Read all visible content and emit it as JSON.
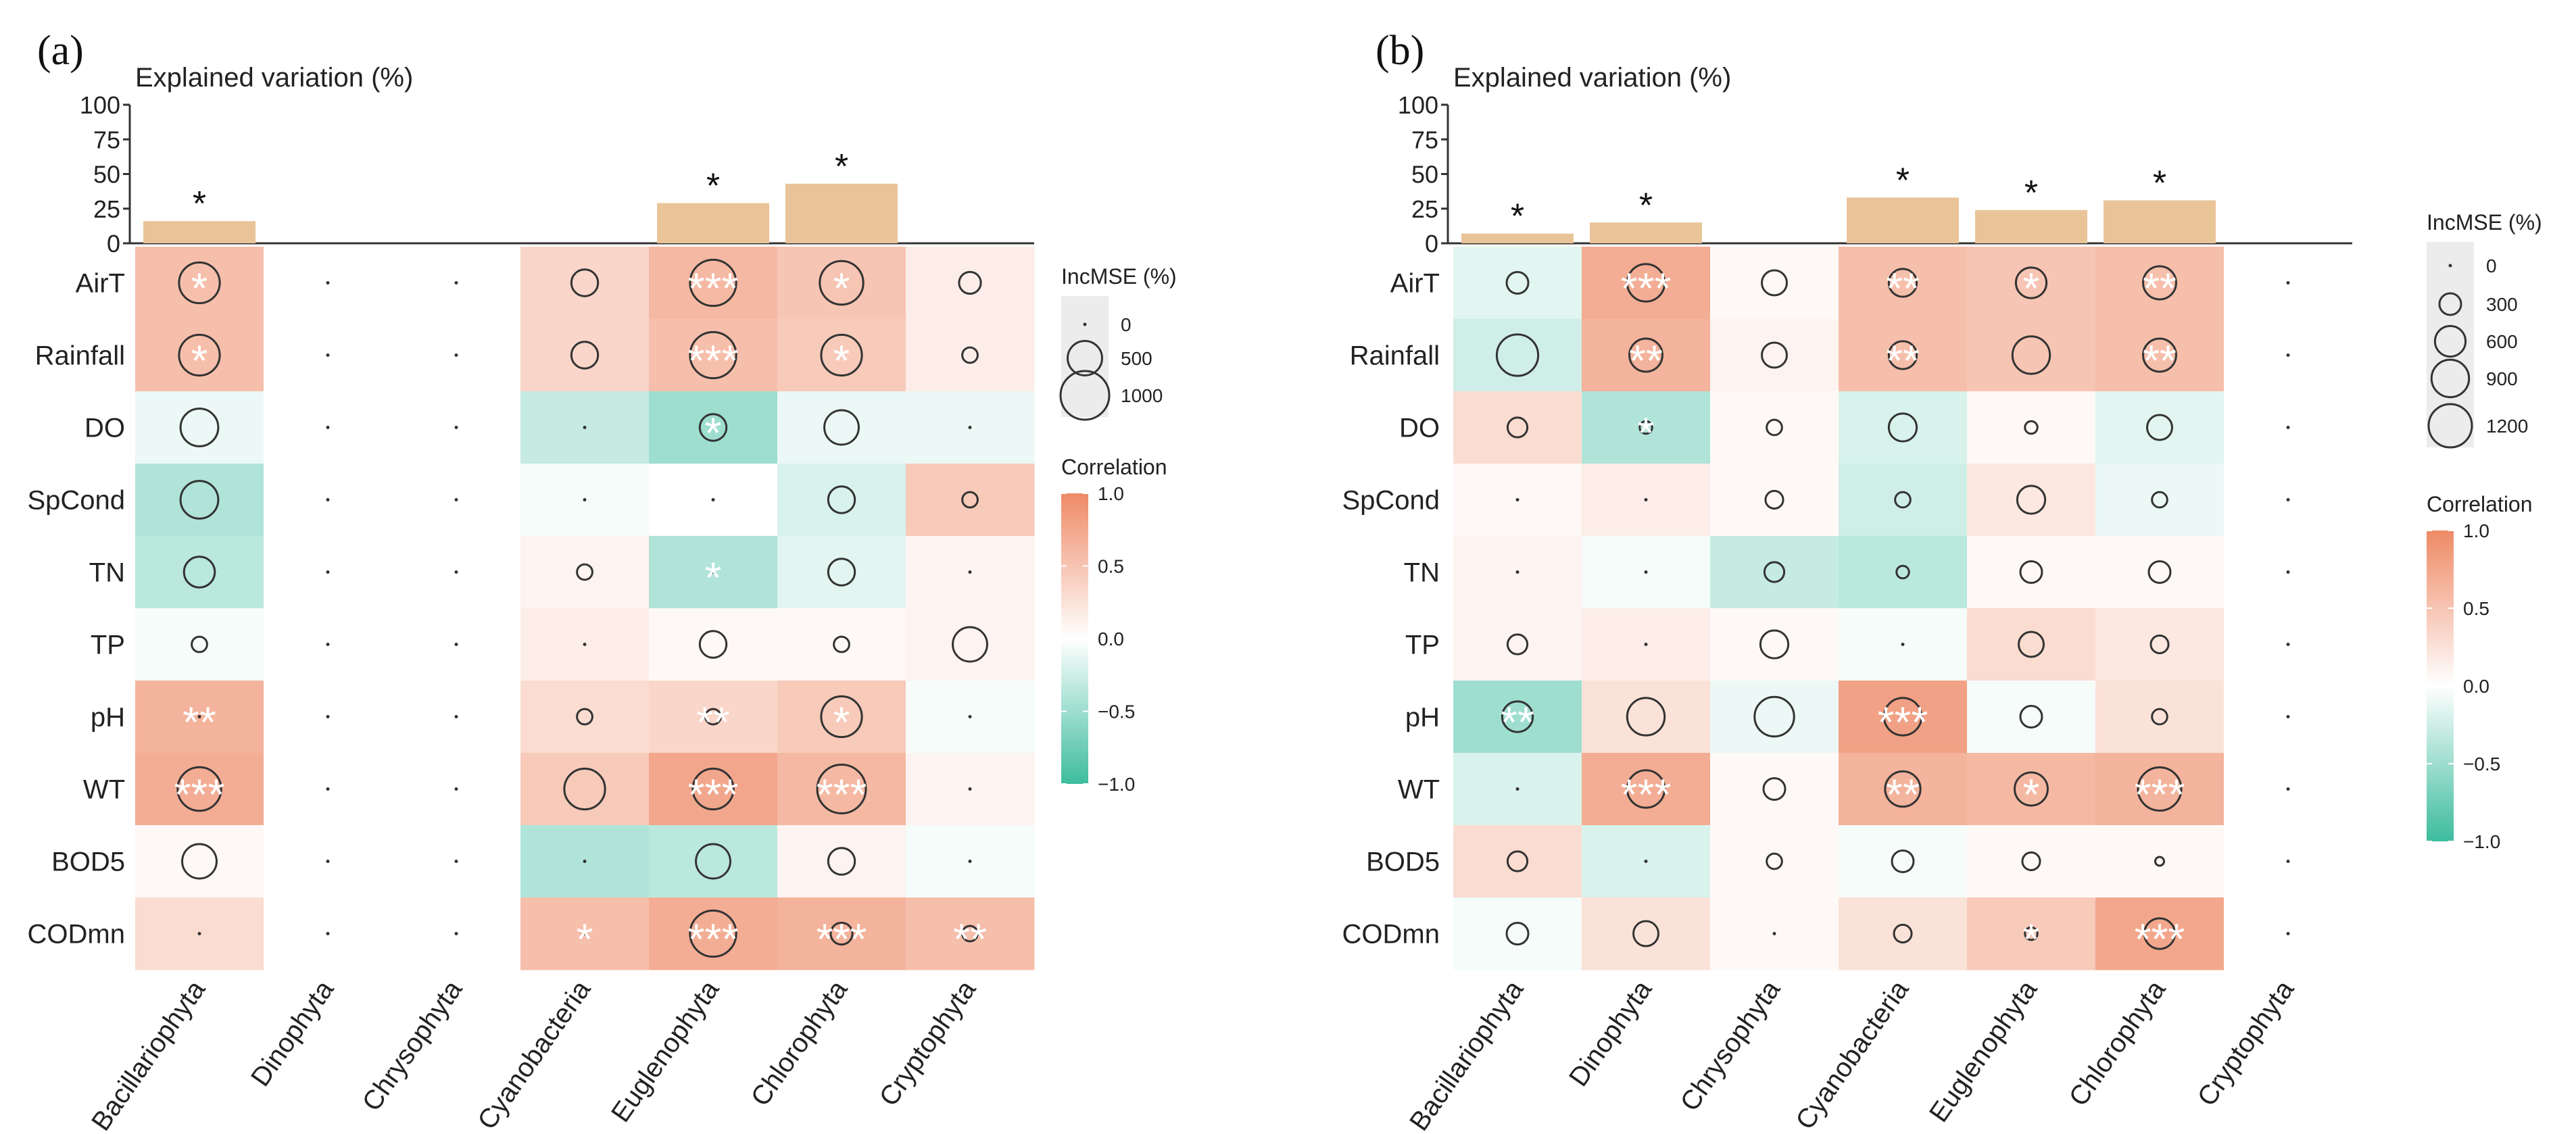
{
  "colors": {
    "bar": "#e9c499",
    "positive": "#ee8a66",
    "neutral": "#ffffff",
    "negative": "#3dbc9e",
    "text": "#222222"
  },
  "chart_data": [
    {
      "type": "heatmap",
      "panel_label": "(a)",
      "title": "Explained variation (%)",
      "bar_ylim": [
        0,
        100
      ],
      "bar_ticks": [
        "100",
        "75",
        "50",
        "25",
        "0"
      ],
      "rows": [
        "AirT",
        "Rainfall",
        "DO",
        "SpCond",
        "TN",
        "TP",
        "pH",
        "WT",
        "BOD5",
        "CODmn"
      ],
      "columns": [
        "Bacillariophyta",
        "Dinophyta",
        "Chrysophyta",
        "Cyanobacteria",
        "Euglenophyta",
        "Chlorophyta",
        "Cryptophyta"
      ],
      "explained_variation": [
        16,
        null,
        null,
        null,
        29,
        43,
        null
      ],
      "bar_significance": [
        "*",
        "",
        "",
        "",
        "*",
        "*",
        ""
      ],
      "correlation": [
        [
          0.55,
          null,
          null,
          0.35,
          0.6,
          0.5,
          0.15
        ],
        [
          0.55,
          null,
          null,
          0.35,
          0.55,
          0.45,
          0.15
        ],
        [
          -0.1,
          null,
          null,
          -0.3,
          -0.5,
          -0.1,
          -0.1
        ],
        [
          -0.4,
          null,
          null,
          -0.05,
          0.0,
          -0.2,
          0.45
        ],
        [
          -0.35,
          null,
          null,
          0.1,
          -0.4,
          -0.15,
          0.1
        ],
        [
          -0.05,
          null,
          null,
          0.15,
          0.05,
          0.05,
          0.1
        ],
        [
          0.65,
          null,
          null,
          0.3,
          0.35,
          0.45,
          -0.05
        ],
        [
          0.7,
          null,
          null,
          0.45,
          0.75,
          0.6,
          0.1
        ],
        [
          0.05,
          null,
          null,
          -0.4,
          -0.35,
          0.1,
          -0.05
        ],
        [
          0.3,
          null,
          null,
          0.55,
          0.7,
          0.65,
          0.55
        ]
      ],
      "incmse": [
        [
          700,
          0,
          0,
          300,
          900,
          800,
          200
        ],
        [
          700,
          0,
          0,
          300,
          900,
          700,
          100
        ],
        [
          600,
          0,
          0,
          0,
          300,
          500,
          0
        ],
        [
          600,
          0,
          0,
          0,
          0,
          300,
          100
        ],
        [
          400,
          0,
          0,
          100,
          0,
          300,
          0
        ],
        [
          100,
          0,
          0,
          0,
          300,
          100,
          500
        ],
        [
          0,
          0,
          0,
          100,
          100,
          700,
          0
        ],
        [
          800,
          0,
          0,
          700,
          700,
          1000,
          0
        ],
        [
          500,
          0,
          0,
          0,
          500,
          300,
          0
        ],
        [
          0,
          0,
          0,
          0,
          900,
          200,
          100
        ]
      ],
      "significance": [
        [
          "*",
          "",
          "",
          "",
          "***",
          "*",
          ""
        ],
        [
          "*",
          "",
          "",
          "",
          "***",
          "*",
          ""
        ],
        [
          "",
          "",
          "",
          "",
          "*",
          "",
          ""
        ],
        [
          "",
          "",
          "",
          "",
          "",
          "",
          ""
        ],
        [
          "",
          "",
          "",
          "",
          "*",
          "",
          ""
        ],
        [
          "",
          "",
          "",
          "",
          "",
          "",
          ""
        ],
        [
          "**",
          "",
          "",
          "",
          "**",
          "*",
          ""
        ],
        [
          "***",
          "",
          "",
          "",
          "***",
          "***",
          ""
        ],
        [
          "",
          "",
          "",
          "",
          "",
          "",
          ""
        ],
        [
          "",
          "",
          "",
          "*",
          "***",
          "***",
          "**"
        ]
      ],
      "size_legend_title": "IncMSE (%)",
      "size_legend_values": [
        0,
        500,
        1000
      ],
      "size_legend_labels": [
        "0",
        "500",
        "1000"
      ],
      "color_legend_title": "Correlation",
      "color_legend_ticks": [
        "1.0",
        "0.5",
        "0.0",
        "−0.5",
        "−1.0"
      ],
      "corr_range": [
        -1.0,
        1.0
      ]
    },
    {
      "type": "heatmap",
      "panel_label": "(b)",
      "title": "Explained variation (%)",
      "bar_ylim": [
        0,
        100
      ],
      "bar_ticks": [
        "100",
        "75",
        "50",
        "25",
        "0"
      ],
      "rows": [
        "AirT",
        "Rainfall",
        "DO",
        "SpCond",
        "TN",
        "TP",
        "pH",
        "WT",
        "BOD5",
        "CODmn"
      ],
      "columns": [
        "Bacillariophyta",
        "Dinophyta",
        "Chrysophyta",
        "Cyanobacteria",
        "Euglenophyta",
        "Chlorophyta",
        "Cryptophyta"
      ],
      "explained_variation": [
        7,
        15,
        null,
        33,
        24,
        31,
        null
      ],
      "bar_significance": [
        "*",
        "*",
        "",
        "*",
        "*",
        "*",
        ""
      ],
      "correlation": [
        [
          -0.15,
          0.7,
          0.05,
          0.55,
          0.5,
          0.55,
          null
        ],
        [
          -0.25,
          0.65,
          0.1,
          0.55,
          0.5,
          0.55,
          null
        ],
        [
          0.3,
          -0.4,
          0.05,
          -0.2,
          0.05,
          -0.15,
          null
        ],
        [
          0.05,
          0.15,
          0.05,
          -0.25,
          0.2,
          -0.1,
          null
        ],
        [
          0.1,
          -0.05,
          -0.3,
          -0.35,
          0.05,
          0.05,
          null
        ],
        [
          0.1,
          0.15,
          0.05,
          -0.05,
          0.3,
          0.2,
          null
        ],
        [
          -0.5,
          0.25,
          -0.1,
          0.8,
          -0.05,
          0.25,
          null
        ],
        [
          -0.2,
          0.7,
          0.05,
          0.65,
          0.6,
          0.65,
          null
        ],
        [
          0.3,
          -0.2,
          0.05,
          -0.05,
          0.05,
          0.05,
          null
        ],
        [
          -0.05,
          0.25,
          0.05,
          0.25,
          0.45,
          0.75,
          null
        ]
      ],
      "incmse": [
        [
          300,
          900,
          400,
          500,
          600,
          700,
          0
        ],
        [
          1100,
          700,
          400,
          500,
          900,
          700,
          0
        ],
        [
          250,
          100,
          150,
          500,
          100,
          400,
          0
        ],
        [
          0,
          0,
          200,
          150,
          500,
          150,
          0
        ],
        [
          0,
          0,
          250,
          100,
          300,
          300,
          0
        ],
        [
          250,
          0,
          500,
          0,
          400,
          200,
          0
        ],
        [
          600,
          900,
          1000,
          900,
          300,
          150,
          0
        ],
        [
          0,
          900,
          300,
          800,
          700,
          1200,
          0
        ],
        [
          250,
          0,
          150,
          300,
          200,
          50,
          0
        ],
        [
          300,
          400,
          0,
          200,
          100,
          600,
          0
        ]
      ],
      "significance": [
        [
          "",
          "***",
          "",
          "**",
          "*",
          "**",
          ""
        ],
        [
          "",
          "**",
          "",
          "**",
          "",
          "**",
          ""
        ],
        [
          "",
          "*",
          "",
          "",
          "",
          "",
          ""
        ],
        [
          "",
          "",
          "",
          "",
          "",
          "",
          ""
        ],
        [
          "",
          "",
          "",
          "",
          "",
          "",
          ""
        ],
        [
          "",
          "",
          "",
          "",
          "",
          "",
          ""
        ],
        [
          "**",
          "",
          "",
          "***",
          "",
          "",
          ""
        ],
        [
          "",
          "***",
          "",
          "**",
          "*",
          "***",
          ""
        ],
        [
          "",
          "",
          "",
          "",
          "",
          "",
          ""
        ],
        [
          "",
          "",
          "",
          "",
          "*",
          "***",
          ""
        ]
      ],
      "size_legend_title": "IncMSE (%)",
      "size_legend_values": [
        0,
        300,
        600,
        900,
        1200
      ],
      "size_legend_labels": [
        "0",
        "300",
        "600",
        "900",
        "1200"
      ],
      "color_legend_title": "Correlation",
      "color_legend_ticks": [
        "1.0",
        "0.5",
        "0.0",
        "−0.5",
        "−1.0"
      ],
      "corr_range": [
        -1.0,
        1.0
      ]
    }
  ]
}
